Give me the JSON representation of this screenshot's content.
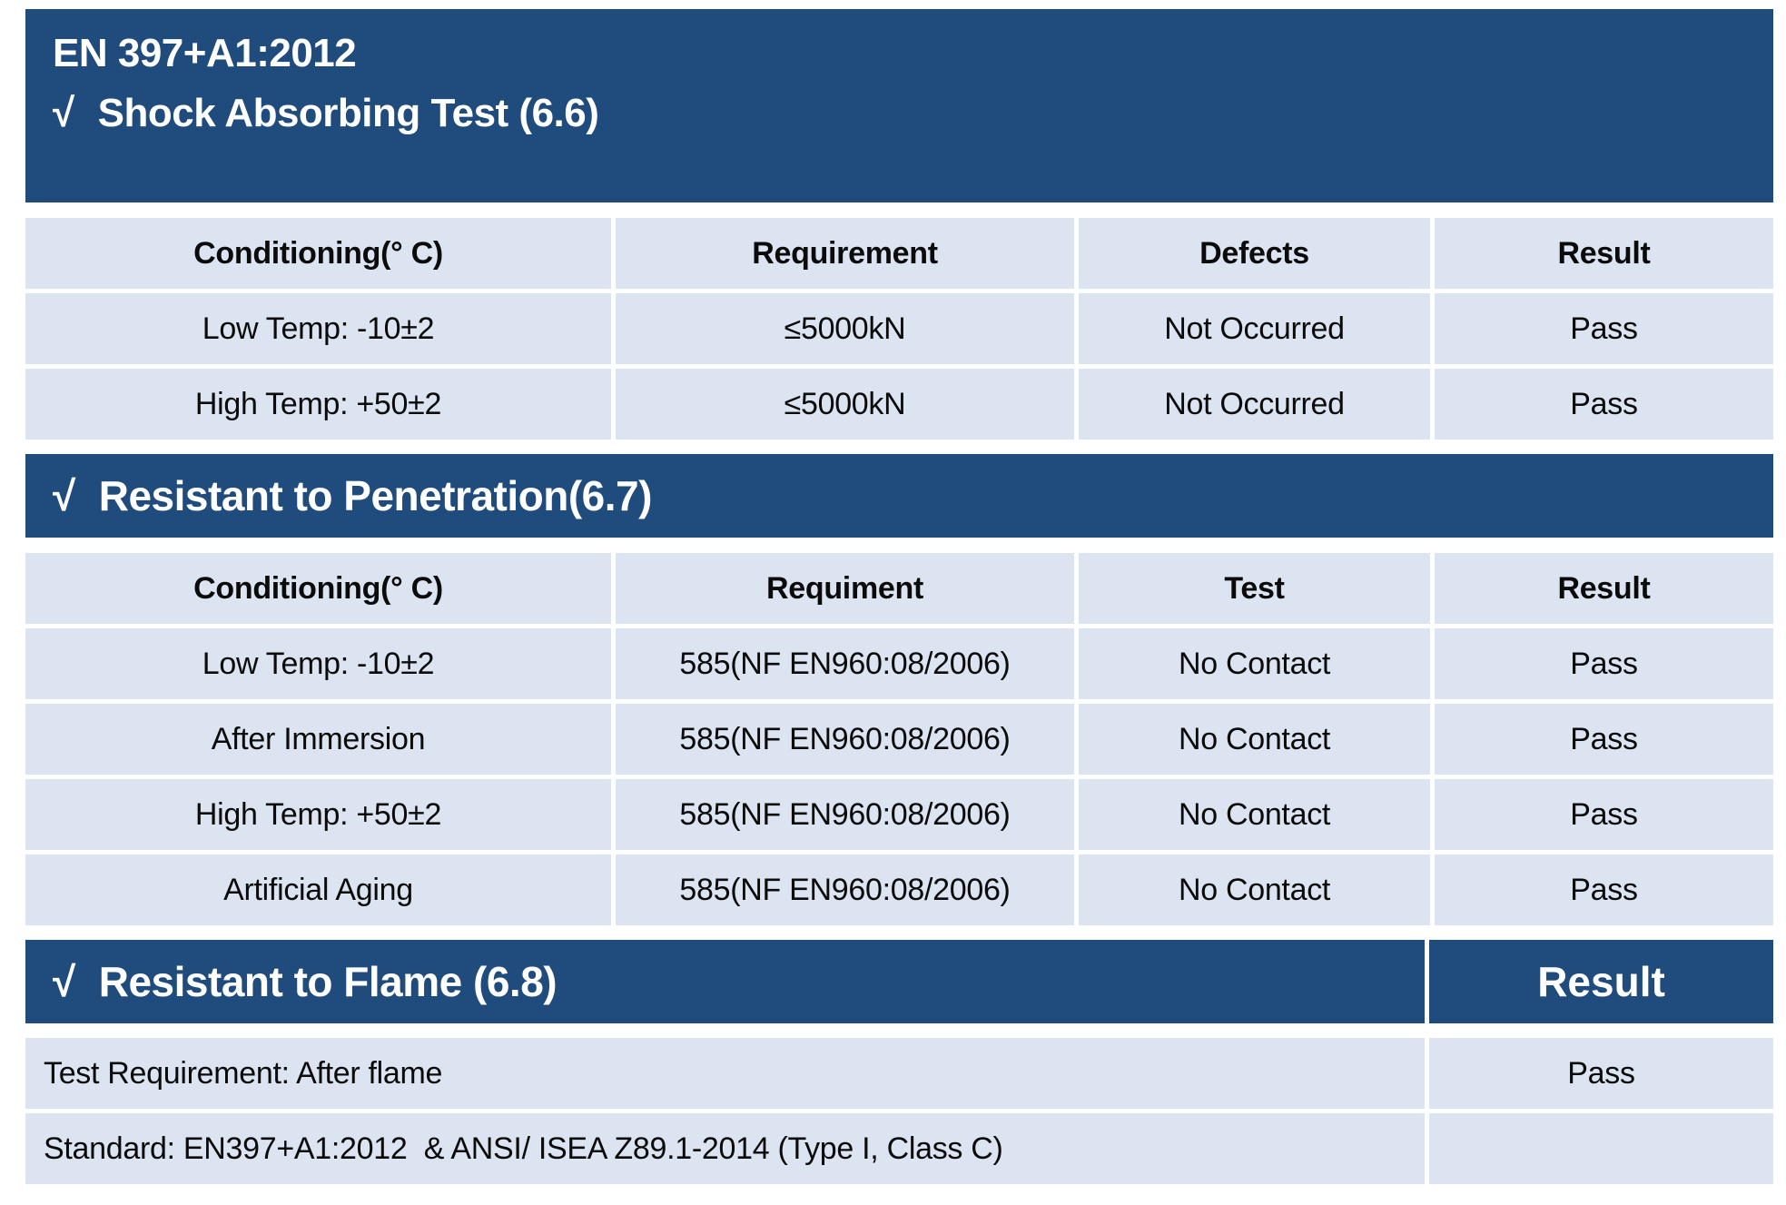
{
  "colors": {
    "banner_blue": "#1f4b7d",
    "cell_blue": "#dbe4f0",
    "banner_text": "#ffffff",
    "cell_text": "#0b0b0b"
  },
  "title_block": {
    "line1": "EN 397+A1:2012",
    "check": "√",
    "line2": "Shock Absorbing Test (6.6)"
  },
  "shock_table": {
    "headers": [
      "Conditioning(° C)",
      "Requirement",
      "Defects",
      "Result"
    ],
    "rows": [
      [
        "Low Temp: -10±2",
        "≤5000kN",
        "Not Occurred",
        "Pass"
      ],
      [
        "High Temp: +50±2",
        "≤5000kN",
        "Not Occurred",
        "Pass"
      ]
    ]
  },
  "penetration_section": {
    "check": "√",
    "title": "Resistant to Penetration(6.7)",
    "headers": [
      "Conditioning(° C)",
      "Requiment",
      "Test",
      "Result"
    ],
    "rows": [
      [
        "Low Temp: -10±2",
        "585(NF EN960:08/2006)",
        "No Contact",
        "Pass"
      ],
      [
        "After Immersion",
        "585(NF EN960:08/2006)",
        "No Contact",
        "Pass"
      ],
      [
        "High Temp: +50±2",
        "585(NF EN960:08/2006)",
        "No Contact",
        "Pass"
      ],
      [
        "Artificial Aging",
        "585(NF EN960:08/2006)",
        "No Contact",
        "Pass"
      ]
    ]
  },
  "flame_section": {
    "check": "√",
    "title": "Resistant to Flame (6.8)",
    "result_header": "Result",
    "rows": [
      [
        "Test Requirement: After flame",
        "Pass"
      ],
      [
        "Standard: EN397+A1:2012  & ANSI/ ISEA Z89.1-2014 (Type I, Class C)",
        ""
      ]
    ]
  }
}
